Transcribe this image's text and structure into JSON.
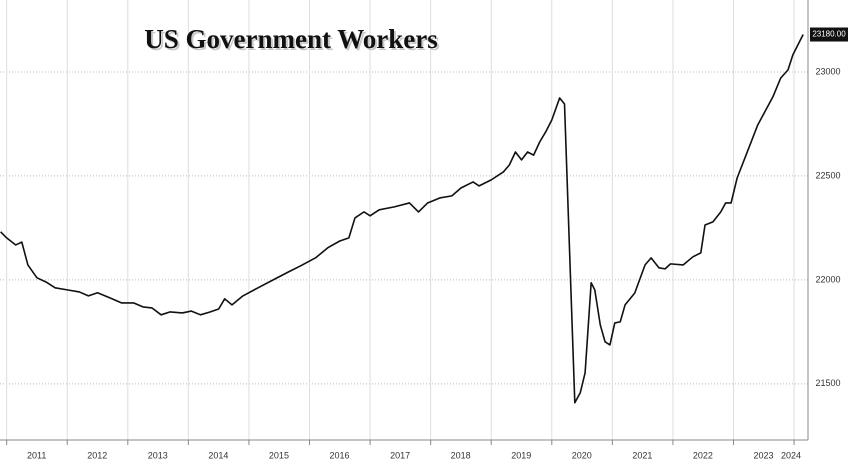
{
  "chart_data": {
    "type": "line",
    "title": "US Government Workers",
    "x": [
      2010.9,
      2011.0,
      2011.15,
      2011.25,
      2011.35,
      2011.5,
      2011.65,
      2011.8,
      2012.0,
      2012.2,
      2012.35,
      2012.5,
      2012.7,
      2012.9,
      2013.1,
      2013.25,
      2013.4,
      2013.55,
      2013.7,
      2013.9,
      2014.05,
      2014.2,
      2014.35,
      2014.5,
      2014.6,
      2014.72,
      2014.9,
      2015.15,
      2015.4,
      2015.65,
      2015.85,
      2016.1,
      2016.3,
      2016.5,
      2016.65,
      2016.75,
      2016.9,
      2017.0,
      2017.15,
      2017.4,
      2017.65,
      2017.8,
      2017.95,
      2018.15,
      2018.35,
      2018.5,
      2018.7,
      2018.8,
      2019.0,
      2019.2,
      2019.3,
      2019.4,
      2019.5,
      2019.6,
      2019.7,
      2019.8,
      2019.9,
      2020.0,
      2020.13,
      2020.21,
      2020.38,
      2020.47,
      2020.55,
      2020.65,
      2020.71,
      2020.8,
      2020.88,
      2020.96,
      2021.04,
      2021.13,
      2021.21,
      2021.37,
      2021.54,
      2021.64,
      2021.77,
      2021.87,
      2021.96,
      2022.17,
      2022.33,
      2022.46,
      2022.53,
      2022.66,
      2022.79,
      2022.87,
      2022.96,
      2023.06,
      2023.24,
      2023.4,
      2023.65,
      2023.78,
      2023.9,
      2023.98,
      2024.15
    ],
    "values": [
      22231,
      22202,
      22168,
      22182,
      22072,
      22010,
      21990,
      21962,
      21952,
      21942,
      21923,
      21938,
      21914,
      21889,
      21889,
      21870,
      21865,
      21832,
      21846,
      21841,
      21850,
      21832,
      21845,
      21860,
      21909,
      21880,
      21923,
      21962,
      22000,
      22038,
      22067,
      22106,
      22154,
      22187,
      22202,
      22298,
      22327,
      22308,
      22337,
      22351,
      22370,
      22327,
      22370,
      22394,
      22404,
      22442,
      22471,
      22452,
      22481,
      22519,
      22553,
      22615,
      22577,
      22615,
      22600,
      22663,
      22712,
      22769,
      22875,
      22846,
      21409,
      21457,
      21553,
      21986,
      21952,
      21784,
      21702,
      21687,
      21793,
      21798,
      21880,
      21937,
      22072,
      22106,
      22058,
      22053,
      22077,
      22072,
      22111,
      22130,
      22264,
      22279,
      22327,
      22370,
      22370,
      22490,
      22625,
      22745,
      22880,
      22971,
      23010,
      23082,
      23180
    ],
    "value_labels": [
      null,
      null,
      null,
      null,
      null,
      null,
      null,
      null,
      null,
      null,
      null,
      null,
      null,
      null,
      null,
      null,
      null,
      null,
      null,
      null,
      null,
      null,
      null,
      null,
      null,
      null,
      null,
      null,
      null,
      null,
      null,
      null,
      null,
      null,
      null,
      null,
      null,
      null,
      null,
      null,
      null,
      null,
      null,
      null,
      null,
      null,
      null,
      null,
      null,
      null,
      null,
      null,
      null,
      null,
      null,
      null,
      null,
      null,
      null,
      null,
      null,
      null,
      null,
      null,
      null,
      null,
      null,
      null,
      null,
      null,
      null,
      null,
      null,
      null,
      null,
      null,
      null,
      null,
      null,
      null,
      null,
      null,
      null,
      null,
      null,
      null,
      null,
      null,
      null,
      null,
      null,
      null,
      "23180.00"
    ],
    "color": "#111111",
    "xlim": [
      2010.89,
      2024.23
    ],
    "xticks": [
      2011,
      2012,
      2013,
      2014,
      2015,
      2016,
      2017,
      2018,
      2019,
      2020,
      2021,
      2022,
      2023,
      2024
    ],
    "ylim": [
      21230,
      23346
    ],
    "yticks": [
      21500,
      22000,
      22500,
      23000
    ],
    "grid": true
  }
}
